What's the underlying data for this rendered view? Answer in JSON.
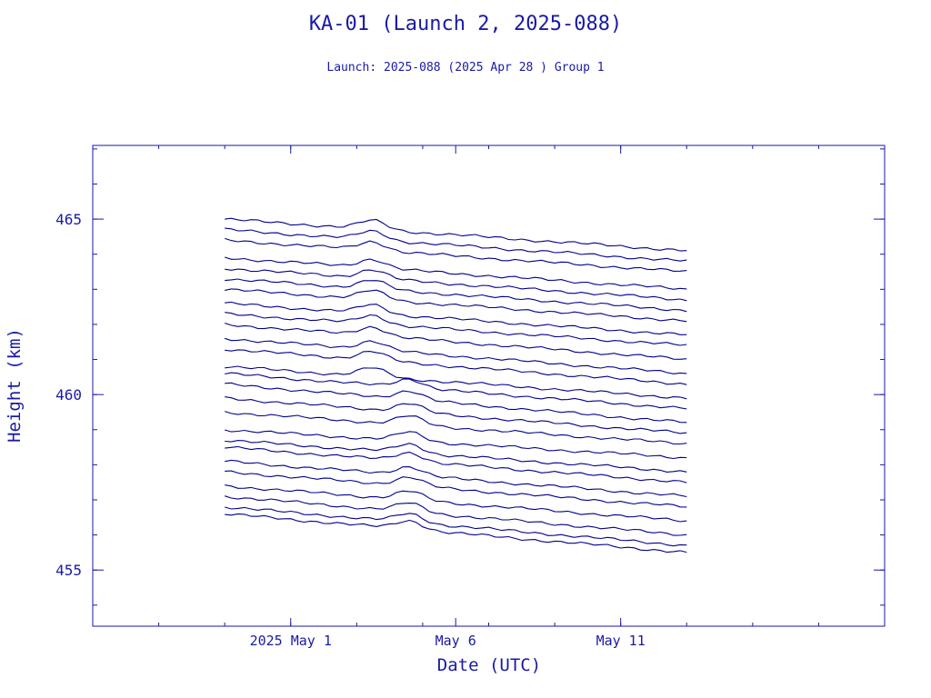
{
  "chart_data": {
    "type": "line",
    "title": "KA-01 (Launch 2, 2025-088)",
    "subtitle": "Launch: 2025-088  (2025 Apr 28 )  Group 1",
    "xlabel": "Date (UTC)",
    "ylabel": "Height (km)",
    "x_tick_labels": [
      "2025 May  1",
      "May  6",
      "May 11"
    ],
    "x_tick_dates": [
      "2025-05-01",
      "2025-05-06",
      "2025-05-11"
    ],
    "xlim": [
      "2025-04-25",
      "2025-05-19"
    ],
    "ylim": [
      453.4,
      467.1
    ],
    "y_ticks": [
      455,
      460,
      465
    ],
    "x_start": "2025-04-29",
    "x_end": "2025-05-13",
    "series_starts": [
      465.0,
      464.7,
      464.4,
      463.9,
      463.6,
      463.3,
      463.0,
      462.6,
      462.3,
      462.0,
      461.6,
      461.3,
      460.8,
      460.6,
      460.3,
      459.9,
      459.5,
      459.0,
      458.7,
      458.5,
      458.1,
      457.8,
      457.4,
      457.1,
      456.8,
      456.6
    ],
    "series_ends": [
      464.1,
      463.8,
      463.5,
      463.0,
      462.7,
      462.4,
      462.1,
      461.7,
      461.4,
      461.0,
      460.6,
      460.3,
      459.9,
      459.6,
      459.2,
      458.9,
      458.6,
      458.2,
      457.8,
      457.5,
      457.1,
      456.8,
      456.4,
      456.0,
      455.7,
      455.5
    ]
  },
  "colors": {
    "axis": "#1a1aa6",
    "line": "#00008b",
    "background": "#ffffff"
  }
}
